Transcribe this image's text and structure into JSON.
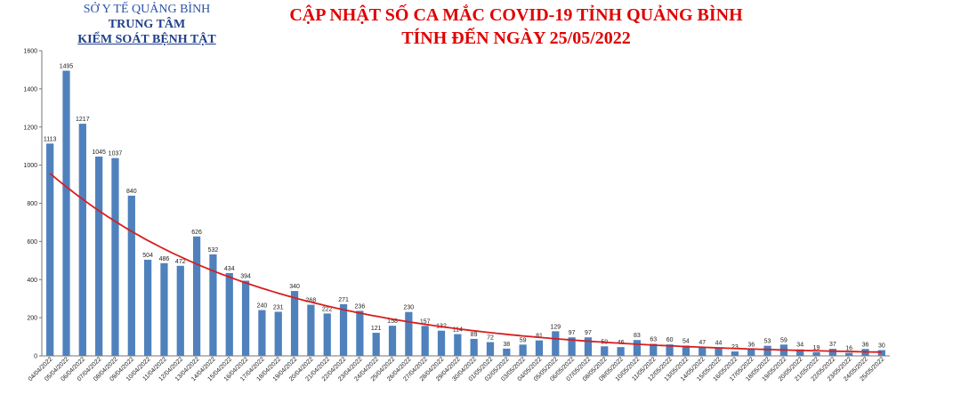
{
  "header": {
    "org_line1": "SỞ Y TẾ QUẢNG BÌNH",
    "org_line2": "TRUNG TÂM",
    "org_line3": "KIỂM SOÁT BỆNH TẬT",
    "title_line1": "CẬP NHẬT SỐ CA MẮC COVID-19 TỈNH QUẢNG BÌNH",
    "title_line2": "TÍNH ĐẾN NGÀY 25/05/2022"
  },
  "colors": {
    "bar": "#4f81bd",
    "trend": "#d81e1e",
    "title": "#e00000",
    "org": "#1f3f8a"
  },
  "chart_data": {
    "type": "bar",
    "title": "CẬP NHẬT SỐ CA MẮC COVID-19 TỈNH QUẢNG BÌNH",
    "subtitle": "TÍNH ĐẾN NGÀY 25/05/2022",
    "xlabel": "",
    "ylabel": "",
    "ylim": [
      0,
      1600
    ],
    "yticks": [
      0,
      200,
      400,
      600,
      800,
      1000,
      1200,
      1400,
      1600
    ],
    "grid": false,
    "trendline": "exponential",
    "categories": [
      "04/04/2022",
      "05/04/2022",
      "06/04/2022",
      "07/04/2022",
      "08/04/2022",
      "09/04/2022",
      "10/04/2022",
      "11/04/2022",
      "12/04/2022",
      "13/04/2022",
      "14/04/2022",
      "15/04/2022",
      "16/04/2022",
      "17/04/2022",
      "18/04/2022",
      "19/04/2022",
      "20/04/2022",
      "21/04/2022",
      "22/04/2022",
      "23/04/2022",
      "24/04/2022",
      "25/04/2022",
      "26/04/2022",
      "27/04/2022",
      "28/04/2022",
      "29/04/2022",
      "30/04/2022",
      "01/05/2022",
      "02/05/2022",
      "03/05/2022",
      "04/05/2022",
      "05/05/2022",
      "06/05/2022",
      "07/05/2022",
      "08/05/2022",
      "09/05/2022",
      "10/05/2022",
      "11/05/2022",
      "12/05/2022",
      "13/05/2022",
      "14/05/2022",
      "15/05/2022",
      "16/05/2022",
      "17/05/2022",
      "18/05/2022",
      "19/05/2022",
      "20/05/2022",
      "21/05/2022",
      "22/05/2022",
      "23/05/2022",
      "24/05/2022",
      "25/05/2022"
    ],
    "values": [
      1113,
      1495,
      1217,
      1045,
      1037,
      840,
      504,
      486,
      472,
      626,
      532,
      434,
      394,
      240,
      231,
      340,
      268,
      222,
      271,
      236,
      121,
      158,
      230,
      157,
      132,
      114,
      89,
      72,
      38,
      59,
      81,
      129,
      97,
      97,
      50,
      46,
      83,
      63,
      60,
      54,
      47,
      44,
      23,
      36,
      53,
      59,
      34,
      19,
      37,
      16,
      36,
      30
    ]
  }
}
